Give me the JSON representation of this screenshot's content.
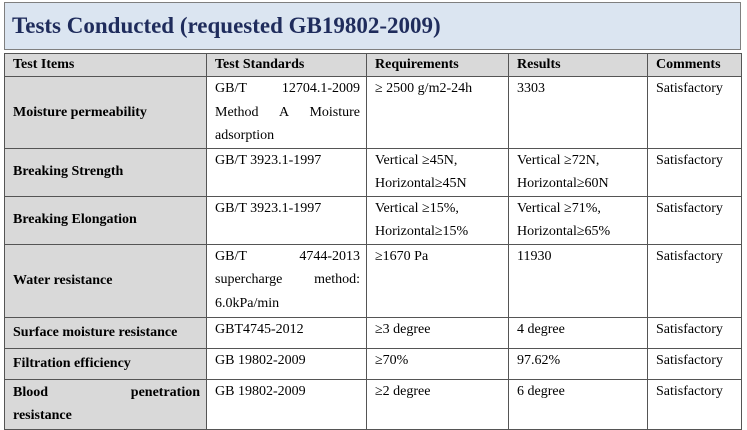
{
  "header": {
    "title": "Tests Conducted (requested GB19802-2009)"
  },
  "table": {
    "columns": [
      "Test Items",
      "Test Standards",
      "Requirements",
      "Results",
      "Comments"
    ],
    "rows": [
      [
        [
          "Moisture permeability"
        ],
        [
          "GB/T 12704.1-2009",
          "Method A Moisture",
          "adsorption"
        ],
        [
          "≥ 2500 g/m2-24h"
        ],
        [
          "3303"
        ],
        [
          "Satisfactory"
        ]
      ],
      [
        [
          "Breaking Strength"
        ],
        [
          "GB/T 3923.1-1997"
        ],
        [
          "Vertical ≥45N,",
          "Horizontal≥45N"
        ],
        [
          "Vertical ≥72N,",
          "Horizontal≥60N"
        ],
        [
          "Satisfactory"
        ]
      ],
      [
        [
          "Breaking Elongation"
        ],
        [
          "GB/T 3923.1-1997"
        ],
        [
          "Vertical ≥15%,",
          "Horizontal≥15%"
        ],
        [
          "Vertical ≥71%,",
          "Horizontal≥65%"
        ],
        [
          "Satisfactory"
        ]
      ],
      [
        [
          "Water resistance"
        ],
        [
          "GB/T 4744-2013",
          "supercharge method:",
          "6.0kPa/min"
        ],
        [
          "≥1670 Pa"
        ],
        [
          "11930"
        ],
        [
          "Satisfactory"
        ]
      ],
      [
        [
          "Surface moisture resistance"
        ],
        [
          "GBT4745-2012"
        ],
        [
          "≥3 degree"
        ],
        [
          "4 degree"
        ],
        [
          "Satisfactory"
        ]
      ],
      [
        [
          "Filtration efficiency"
        ],
        [
          "GB 19802-2009"
        ],
        [
          "≥70%"
        ],
        [
          "97.62%"
        ],
        [
          "Satisfactory"
        ]
      ],
      [
        [
          "Blood penetration",
          "resistance"
        ],
        [
          "GB 19802-2009"
        ],
        [
          "≥2 degree"
        ],
        [
          "6 degree"
        ],
        [
          "Satisfactory"
        ]
      ]
    ]
  }
}
